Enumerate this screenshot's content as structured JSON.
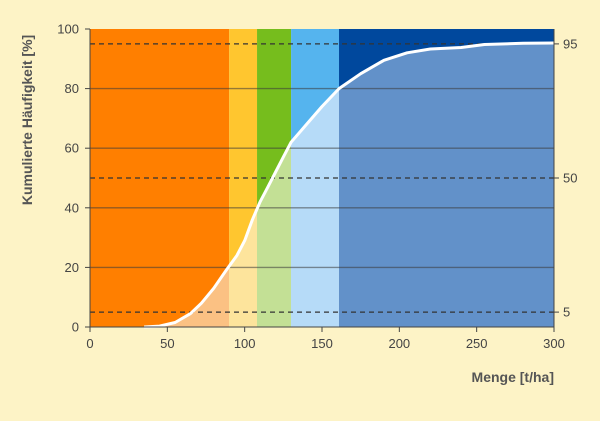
{
  "chart_data": {
    "type": "area",
    "title": "",
    "xlabel": "Menge [t/ha]",
    "ylabel": "Kumulierte Häufigkeit [%]",
    "xlim": [
      0,
      300
    ],
    "ylim": [
      0,
      100
    ],
    "x_ticks": [
      "0",
      "50",
      "100",
      "150",
      "200",
      "250",
      "300"
    ],
    "y_ticks": [
      "0",
      "20",
      "40",
      "60",
      "80",
      "100"
    ],
    "right_ticks": [
      "5",
      "50",
      "95"
    ],
    "reference_lines": [
      5,
      50,
      95
    ],
    "grid": true,
    "bands": [
      {
        "x0": 0,
        "x1": 90,
        "color": "#ff7f00",
        "light": "#fbc183"
      },
      {
        "x0": 90,
        "x1": 108,
        "color": "#ffc62f",
        "light": "#fde49c"
      },
      {
        "x0": 108,
        "x1": 130,
        "color": "#76bd1d",
        "light": "#c3e095"
      },
      {
        "x0": 130,
        "x1": 161,
        "color": "#55b4ee",
        "light": "#b6dbf8"
      },
      {
        "x0": 161,
        "x1": 300,
        "color": "#00489d",
        "light": "#6291c9"
      }
    ],
    "series": [
      {
        "color": "#ffffff",
        "points": [
          [
            35,
            0
          ],
          [
            45,
            0.3
          ],
          [
            55,
            1.5
          ],
          [
            65,
            4.5
          ],
          [
            72,
            8
          ],
          [
            80,
            13
          ],
          [
            88,
            19
          ],
          [
            95,
            24
          ],
          [
            100,
            29
          ],
          [
            105,
            36
          ],
          [
            110,
            42
          ],
          [
            115,
            47
          ],
          [
            120,
            52
          ],
          [
            125,
            57
          ],
          [
            130,
            62
          ],
          [
            140,
            68
          ],
          [
            150,
            74
          ],
          [
            161,
            80
          ],
          [
            175,
            85
          ],
          [
            190,
            89.5
          ],
          [
            205,
            92
          ],
          [
            220,
            93.3
          ],
          [
            240,
            93.8
          ],
          [
            255,
            94.8
          ],
          [
            280,
            95.2
          ],
          [
            300,
            95.3
          ]
        ]
      }
    ]
  }
}
